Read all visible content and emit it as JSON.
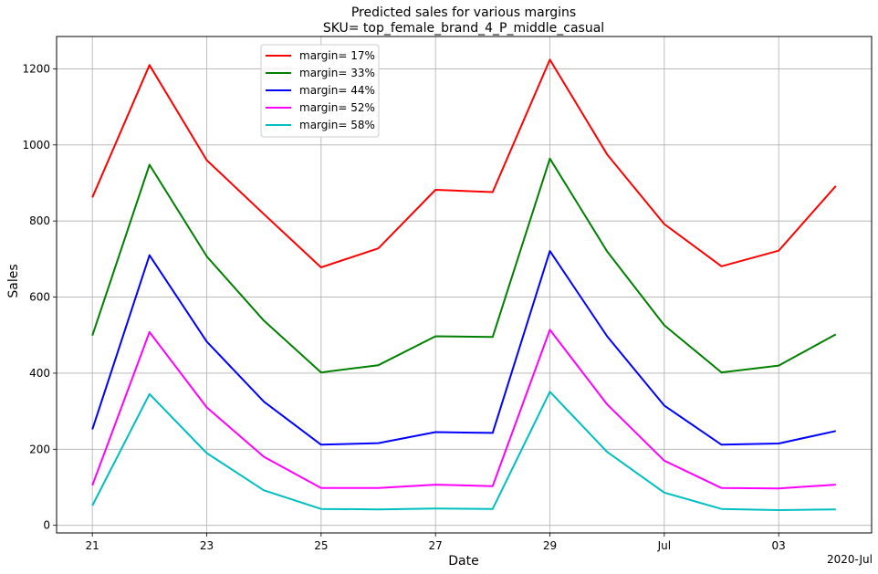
{
  "chart_data": {
    "type": "line",
    "title": "Predicted sales for various margins",
    "subtitle": "SKU= top_female_brand_4_P_middle_casual",
    "xlabel": "Date",
    "ylabel": "Sales",
    "x_offset_label": "2020-Jul",
    "x": [
      "2020-06-21",
      "2020-06-22",
      "2020-06-23",
      "2020-06-24",
      "2020-06-25",
      "2020-06-26",
      "2020-06-27",
      "2020-06-28",
      "2020-06-29",
      "2020-06-30",
      "2020-07-01",
      "2020-07-02",
      "2020-07-03",
      "2020-07-04"
    ],
    "x_ticks": [
      {
        "date": "2020-06-21",
        "label": "21"
      },
      {
        "date": "2020-06-23",
        "label": "23"
      },
      {
        "date": "2020-06-25",
        "label": "25"
      },
      {
        "date": "2020-06-27",
        "label": "27"
      },
      {
        "date": "2020-06-29",
        "label": "29"
      },
      {
        "date": "2020-07-01",
        "label": "Jul"
      },
      {
        "date": "2020-07-03",
        "label": "03"
      }
    ],
    "xlim": [
      "2020-06-20T00:00",
      "2020-07-04T00:00"
    ],
    "xlim_hours": [
      -15,
      327
    ],
    "ylim": [
      -20,
      1285
    ],
    "y_ticks": [
      0,
      200,
      400,
      600,
      800,
      1000,
      1200
    ],
    "grid": true,
    "legend_position": "upper-center-left",
    "series": [
      {
        "name": "margin= 17%",
        "color": "#ff0000",
        "values": [
          862,
          1210,
          960,
          818,
          678,
          728,
          882,
          876,
          1224,
          975,
          792,
          681,
          722,
          892
        ]
      },
      {
        "name": "margin= 33%",
        "color": "#008000",
        "values": [
          499,
          948,
          707,
          538,
          402,
          421,
          497,
          495,
          964,
          720,
          526,
          402,
          420,
          502
        ]
      },
      {
        "name": "margin= 44%",
        "color": "#0000ff",
        "values": [
          252,
          710,
          483,
          325,
          212,
          216,
          245,
          243,
          721,
          497,
          315,
          212,
          215,
          248
        ]
      },
      {
        "name": "margin= 52%",
        "color": "#ff00ff",
        "values": [
          105,
          508,
          310,
          180,
          98,
          98,
          107,
          103,
          514,
          318,
          170,
          98,
          97,
          107
        ]
      },
      {
        "name": "margin= 58%",
        "color": "#00bfbf",
        "values": [
          52,
          345,
          190,
          92,
          43,
          42,
          44,
          43,
          351,
          193,
          86,
          43,
          40,
          42
        ]
      }
    ]
  }
}
